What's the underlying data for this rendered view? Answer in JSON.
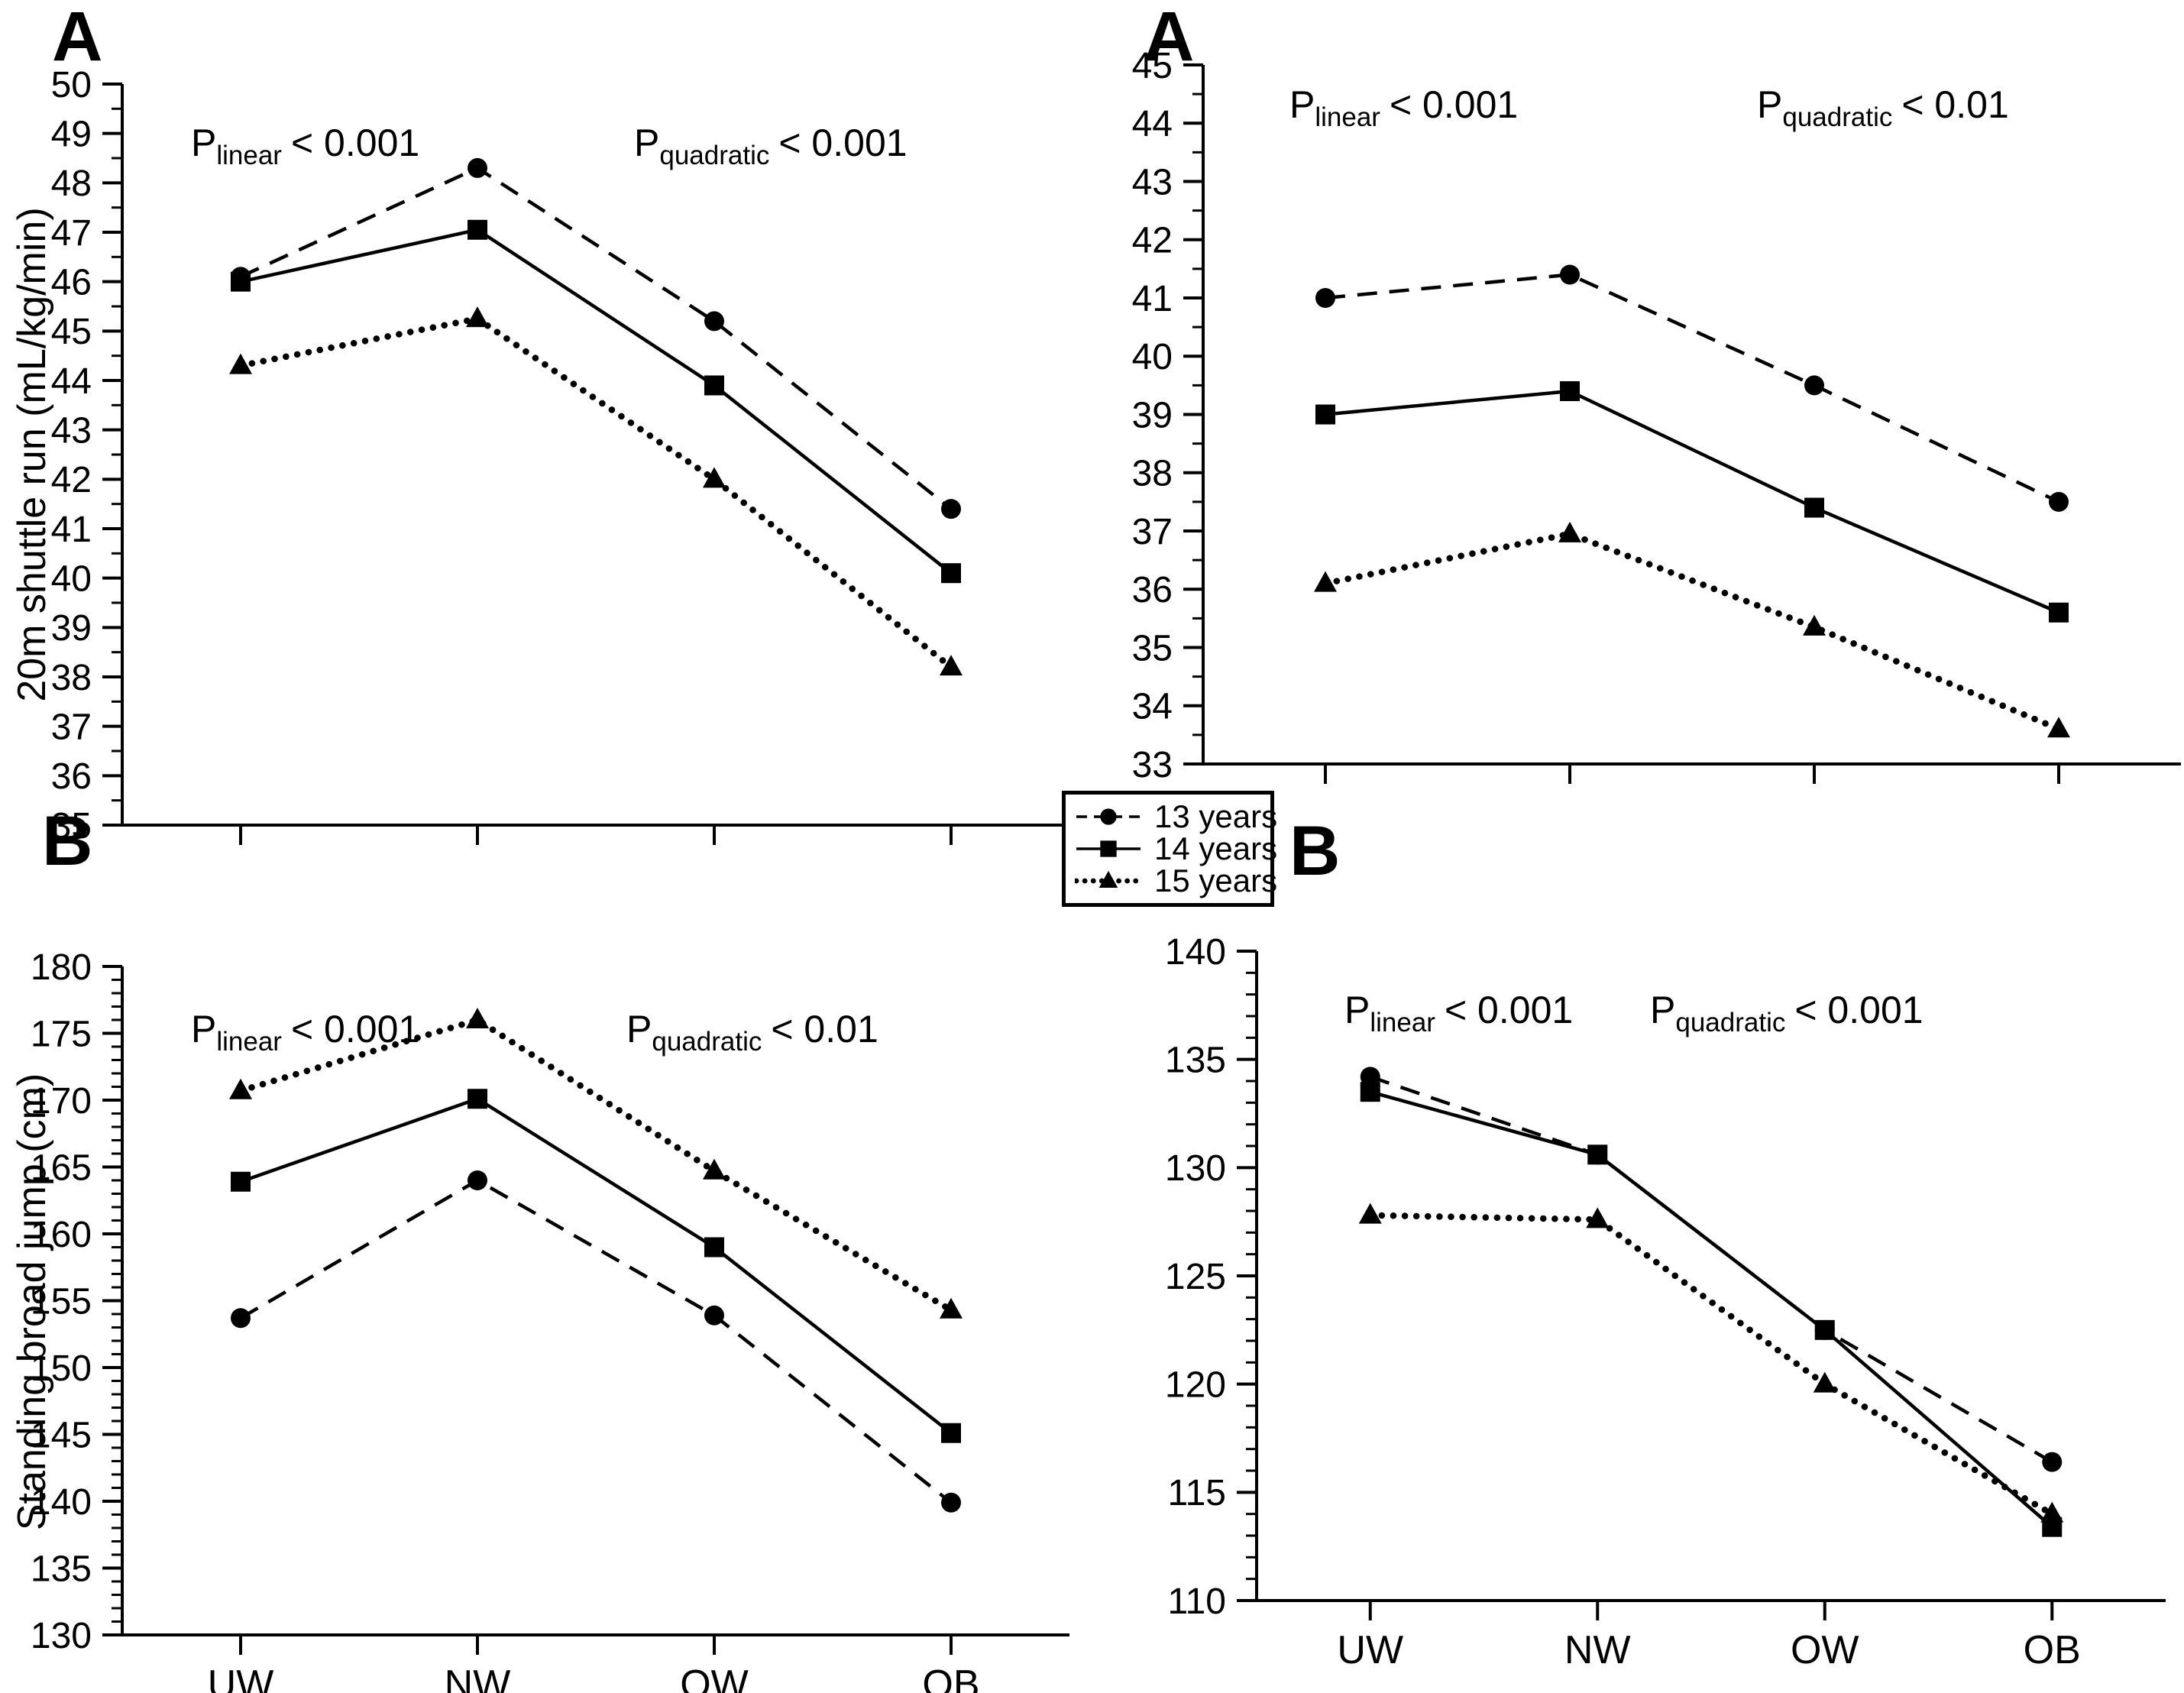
{
  "figure": {
    "background": "#ffffff",
    "ink": "#000000"
  },
  "legend": {
    "items": [
      {
        "label": "13 years",
        "marker": "circle",
        "line": "dashed"
      },
      {
        "label": "14 years",
        "marker": "square",
        "line": "solid"
      },
      {
        "label": "15 years",
        "marker": "triangle",
        "line": "dotted"
      }
    ]
  },
  "chart_data": [
    {
      "id": "shuttle-run-left",
      "panel_label": "A",
      "type": "line",
      "ylabel": "20m shuttle run (mL/kg/min)",
      "ylim": [
        35,
        50
      ],
      "ytick_step": 1,
      "yminor_step": 0.5,
      "grid": false,
      "legend_position": "outside-center",
      "show_x_labels": false,
      "categories": [
        "UW",
        "NW",
        "OW",
        "OB"
      ],
      "annotations": [
        {
          "p": "P",
          "sub": "linear",
          "text": "< 0.001"
        },
        {
          "p": "P",
          "sub": "quadratic",
          "text": "< 0.001"
        }
      ],
      "series": [
        {
          "name": "13 years",
          "marker": "circle",
          "line": "dashed",
          "values": [
            46.1,
            48.3,
            45.2,
            41.4
          ]
        },
        {
          "name": "14 years",
          "marker": "square",
          "line": "solid",
          "values": [
            46.0,
            47.05,
            43.9,
            40.1
          ]
        },
        {
          "name": "15 years",
          "marker": "triangle",
          "line": "dotted",
          "values": [
            44.3,
            45.25,
            42.0,
            38.2
          ]
        }
      ]
    },
    {
      "id": "shuttle-run-right",
      "panel_label": "A",
      "type": "line",
      "ylabel": "",
      "ylim": [
        33,
        45
      ],
      "ytick_step": 1,
      "yminor_step": 0.5,
      "grid": false,
      "legend_position": "outside-center",
      "show_x_labels": false,
      "categories": [
        "UW",
        "NW",
        "OW",
        "OB"
      ],
      "annotations": [
        {
          "p": "P",
          "sub": "linear",
          "text": "< 0.001"
        },
        {
          "p": "P",
          "sub": "quadratic",
          "text": "< 0.01"
        }
      ],
      "series": [
        {
          "name": "13 years",
          "marker": "circle",
          "line": "dashed",
          "values": [
            41.0,
            41.4,
            39.5,
            37.5
          ]
        },
        {
          "name": "14 years",
          "marker": "square",
          "line": "solid",
          "values": [
            39.0,
            39.4,
            37.4,
            35.6
          ]
        },
        {
          "name": "15 years",
          "marker": "triangle",
          "line": "dotted",
          "values": [
            36.1,
            36.95,
            35.35,
            33.6
          ]
        }
      ]
    },
    {
      "id": "broad-jump-left",
      "panel_label": "B",
      "type": "line",
      "ylabel": "Standing broad jump (cm)",
      "ylim": [
        130,
        180
      ],
      "ytick_step": 5,
      "yminor_step": 1,
      "grid": false,
      "legend_position": "outside-center",
      "show_x_labels": true,
      "categories": [
        "UW",
        "NW",
        "OW",
        "OB"
      ],
      "annotations": [
        {
          "p": "P",
          "sub": "linear",
          "text": "< 0.001"
        },
        {
          "p": "P",
          "sub": "quadratic",
          "text": "< 0.01"
        }
      ],
      "series": [
        {
          "name": "13 years",
          "marker": "circle",
          "line": "dashed",
          "values": [
            153.7,
            164.0,
            153.9,
            139.9
          ]
        },
        {
          "name": "14 years",
          "marker": "square",
          "line": "solid",
          "values": [
            163.9,
            170.1,
            159.0,
            145.1
          ]
        },
        {
          "name": "15 years",
          "marker": "triangle",
          "line": "dotted",
          "values": [
            170.7,
            176.0,
            164.7,
            154.3
          ]
        }
      ]
    },
    {
      "id": "broad-jump-right",
      "panel_label": "B",
      "type": "line",
      "ylabel": "",
      "ylim": [
        110,
        140
      ],
      "ytick_step": 5,
      "yminor_step": 1,
      "grid": false,
      "legend_position": "outside-center",
      "show_x_labels": true,
      "categories": [
        "UW",
        "NW",
        "OW",
        "OB"
      ],
      "annotations": [
        {
          "p": "P",
          "sub": "linear",
          "text": "< 0.001"
        },
        {
          "p": "P",
          "sub": "quadratic",
          "text": "< 0.001"
        }
      ],
      "series": [
        {
          "name": "13 years",
          "marker": "circle",
          "line": "dashed",
          "values": [
            134.2,
            130.6,
            122.5,
            116.4
          ]
        },
        {
          "name": "14 years",
          "marker": "square",
          "line": "solid",
          "values": [
            133.5,
            130.6,
            122.5,
            113.4
          ]
        },
        {
          "name": "15 years",
          "marker": "triangle",
          "line": "dotted",
          "values": [
            127.8,
            127.6,
            120.0,
            114.0
          ]
        }
      ]
    }
  ]
}
